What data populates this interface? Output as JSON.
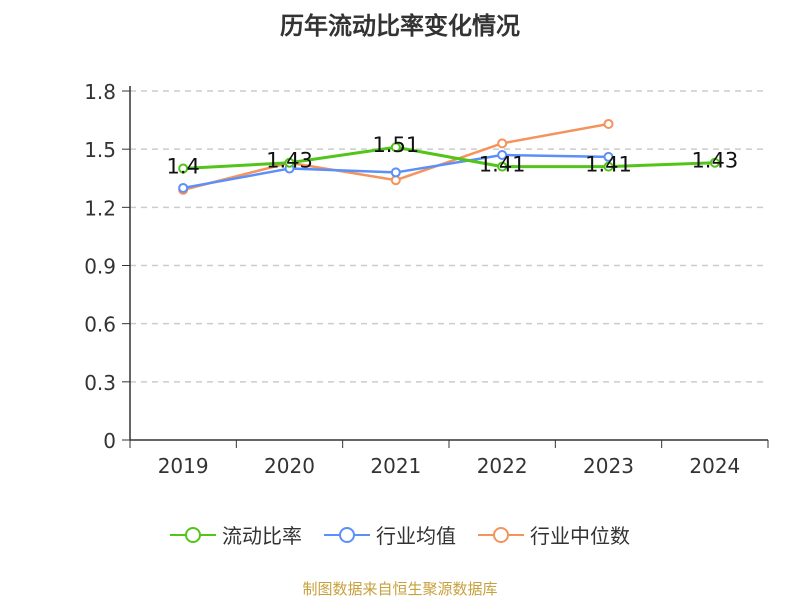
{
  "chart_data": {
    "type": "line",
    "title": "历年流动比率变化情况",
    "categories": [
      "2019",
      "2020",
      "2021",
      "2022",
      "2023",
      "2024"
    ],
    "ylim": [
      0,
      1.8
    ],
    "yticks": [
      "0",
      "0.3",
      "0.6",
      "0.9",
      "1.2",
      "1.5",
      "1.8"
    ],
    "grid": true,
    "legend_position": "bottom",
    "series": [
      {
        "name": "流动比率",
        "color": "#52c41a",
        "values": [
          1.4,
          1.43,
          1.51,
          1.41,
          1.41,
          1.43
        ],
        "labels": [
          "1.4",
          "1.43",
          "1.51",
          "1.41",
          "1.41",
          "1.43"
        ]
      },
      {
        "name": "行业均值",
        "color": "#5b8ff9",
        "values": [
          1.3,
          1.4,
          1.38,
          1.47,
          1.46,
          null
        ]
      },
      {
        "name": "行业中位数",
        "color": "#f4935b",
        "values": [
          1.29,
          1.43,
          1.34,
          1.53,
          1.63,
          null
        ]
      }
    ],
    "source": "制图数据来自恒生聚源数据库"
  }
}
